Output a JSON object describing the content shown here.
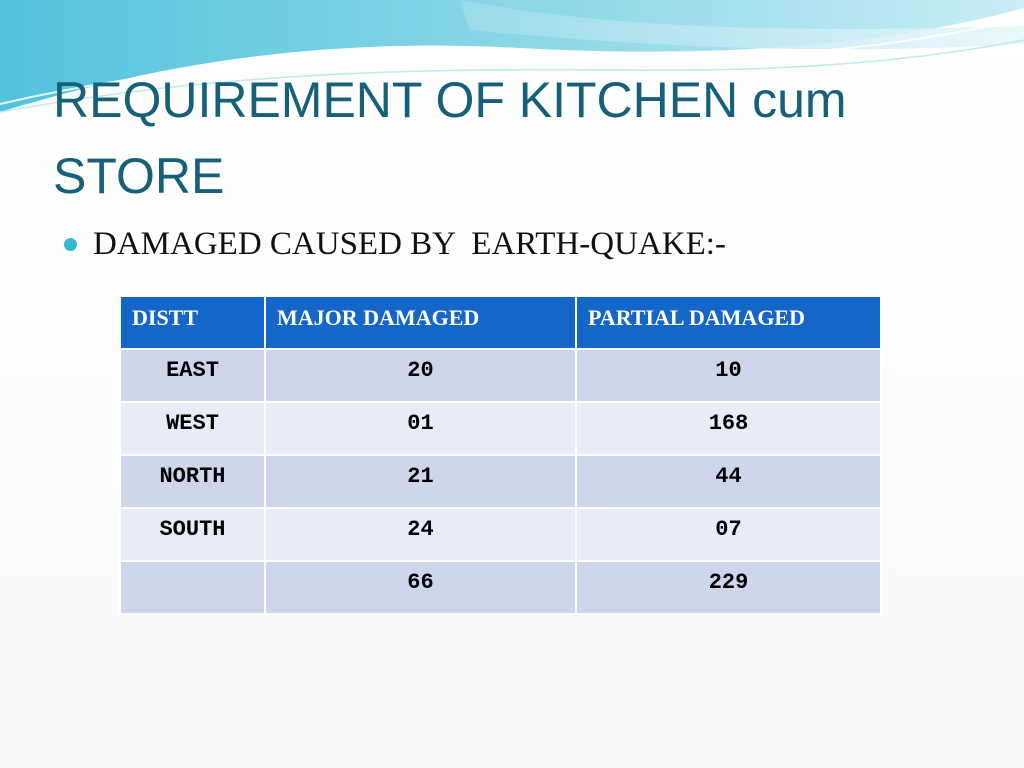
{
  "slide": {
    "title": "REQUIREMENT OF KITCHEN cum STORE",
    "bullet": "DAMAGED CAUSED BY  EARTH-QUAKE:-",
    "colors": {
      "title": "#17607a",
      "bullet_dot": "#33b7d3",
      "header_bg": "#1466c8",
      "row_odd": "#cdd6ea",
      "row_even": "#e8ecf6"
    }
  },
  "table": {
    "headers": [
      "DISTT",
      "MAJOR DAMAGED",
      "PARTIAL DAMAGED"
    ],
    "rows": [
      [
        "EAST",
        "20",
        "10"
      ],
      [
        "WEST",
        "01",
        "168"
      ],
      [
        "NORTH",
        "21",
        "44"
      ],
      [
        "SOUTH",
        "24",
        "07"
      ],
      [
        "",
        "66",
        "229"
      ]
    ]
  }
}
